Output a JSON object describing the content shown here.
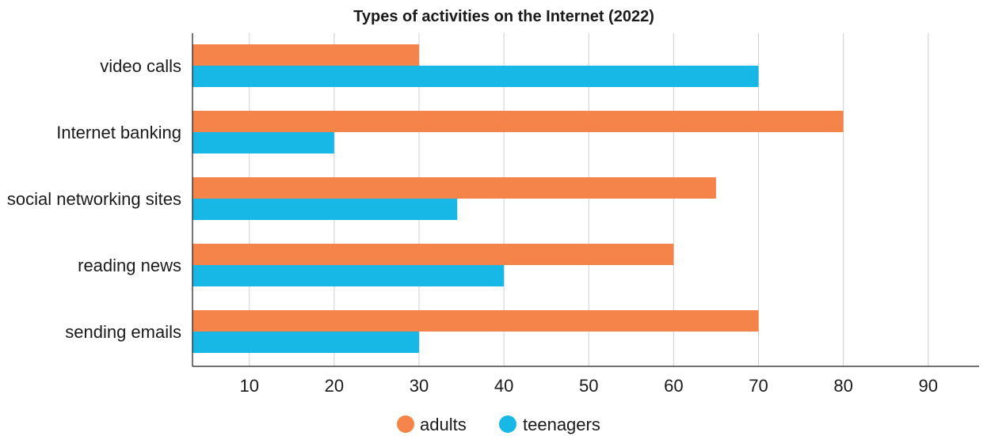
{
  "chart_data": {
    "type": "bar",
    "orientation": "horizontal",
    "title": "Types of activities on the Internet (2022)",
    "xlabel": "",
    "ylabel": "",
    "categories": [
      "video calls",
      "Internet banking",
      "social networking sites",
      "reading news",
      "sending emails"
    ],
    "series": [
      {
        "name": "adults",
        "color": "#F4844A",
        "values": [
          30,
          80,
          65,
          60,
          70
        ]
      },
      {
        "name": "teenagers",
        "color": "#18B8E6",
        "values": [
          70,
          20,
          34.5,
          40,
          30
        ]
      }
    ],
    "xlim": [
      3.3,
      96
    ],
    "x_ticks": [
      10,
      20,
      30,
      40,
      50,
      60,
      70,
      80,
      90
    ],
    "grid": "vertical",
    "legend_position": "bottom-center"
  }
}
